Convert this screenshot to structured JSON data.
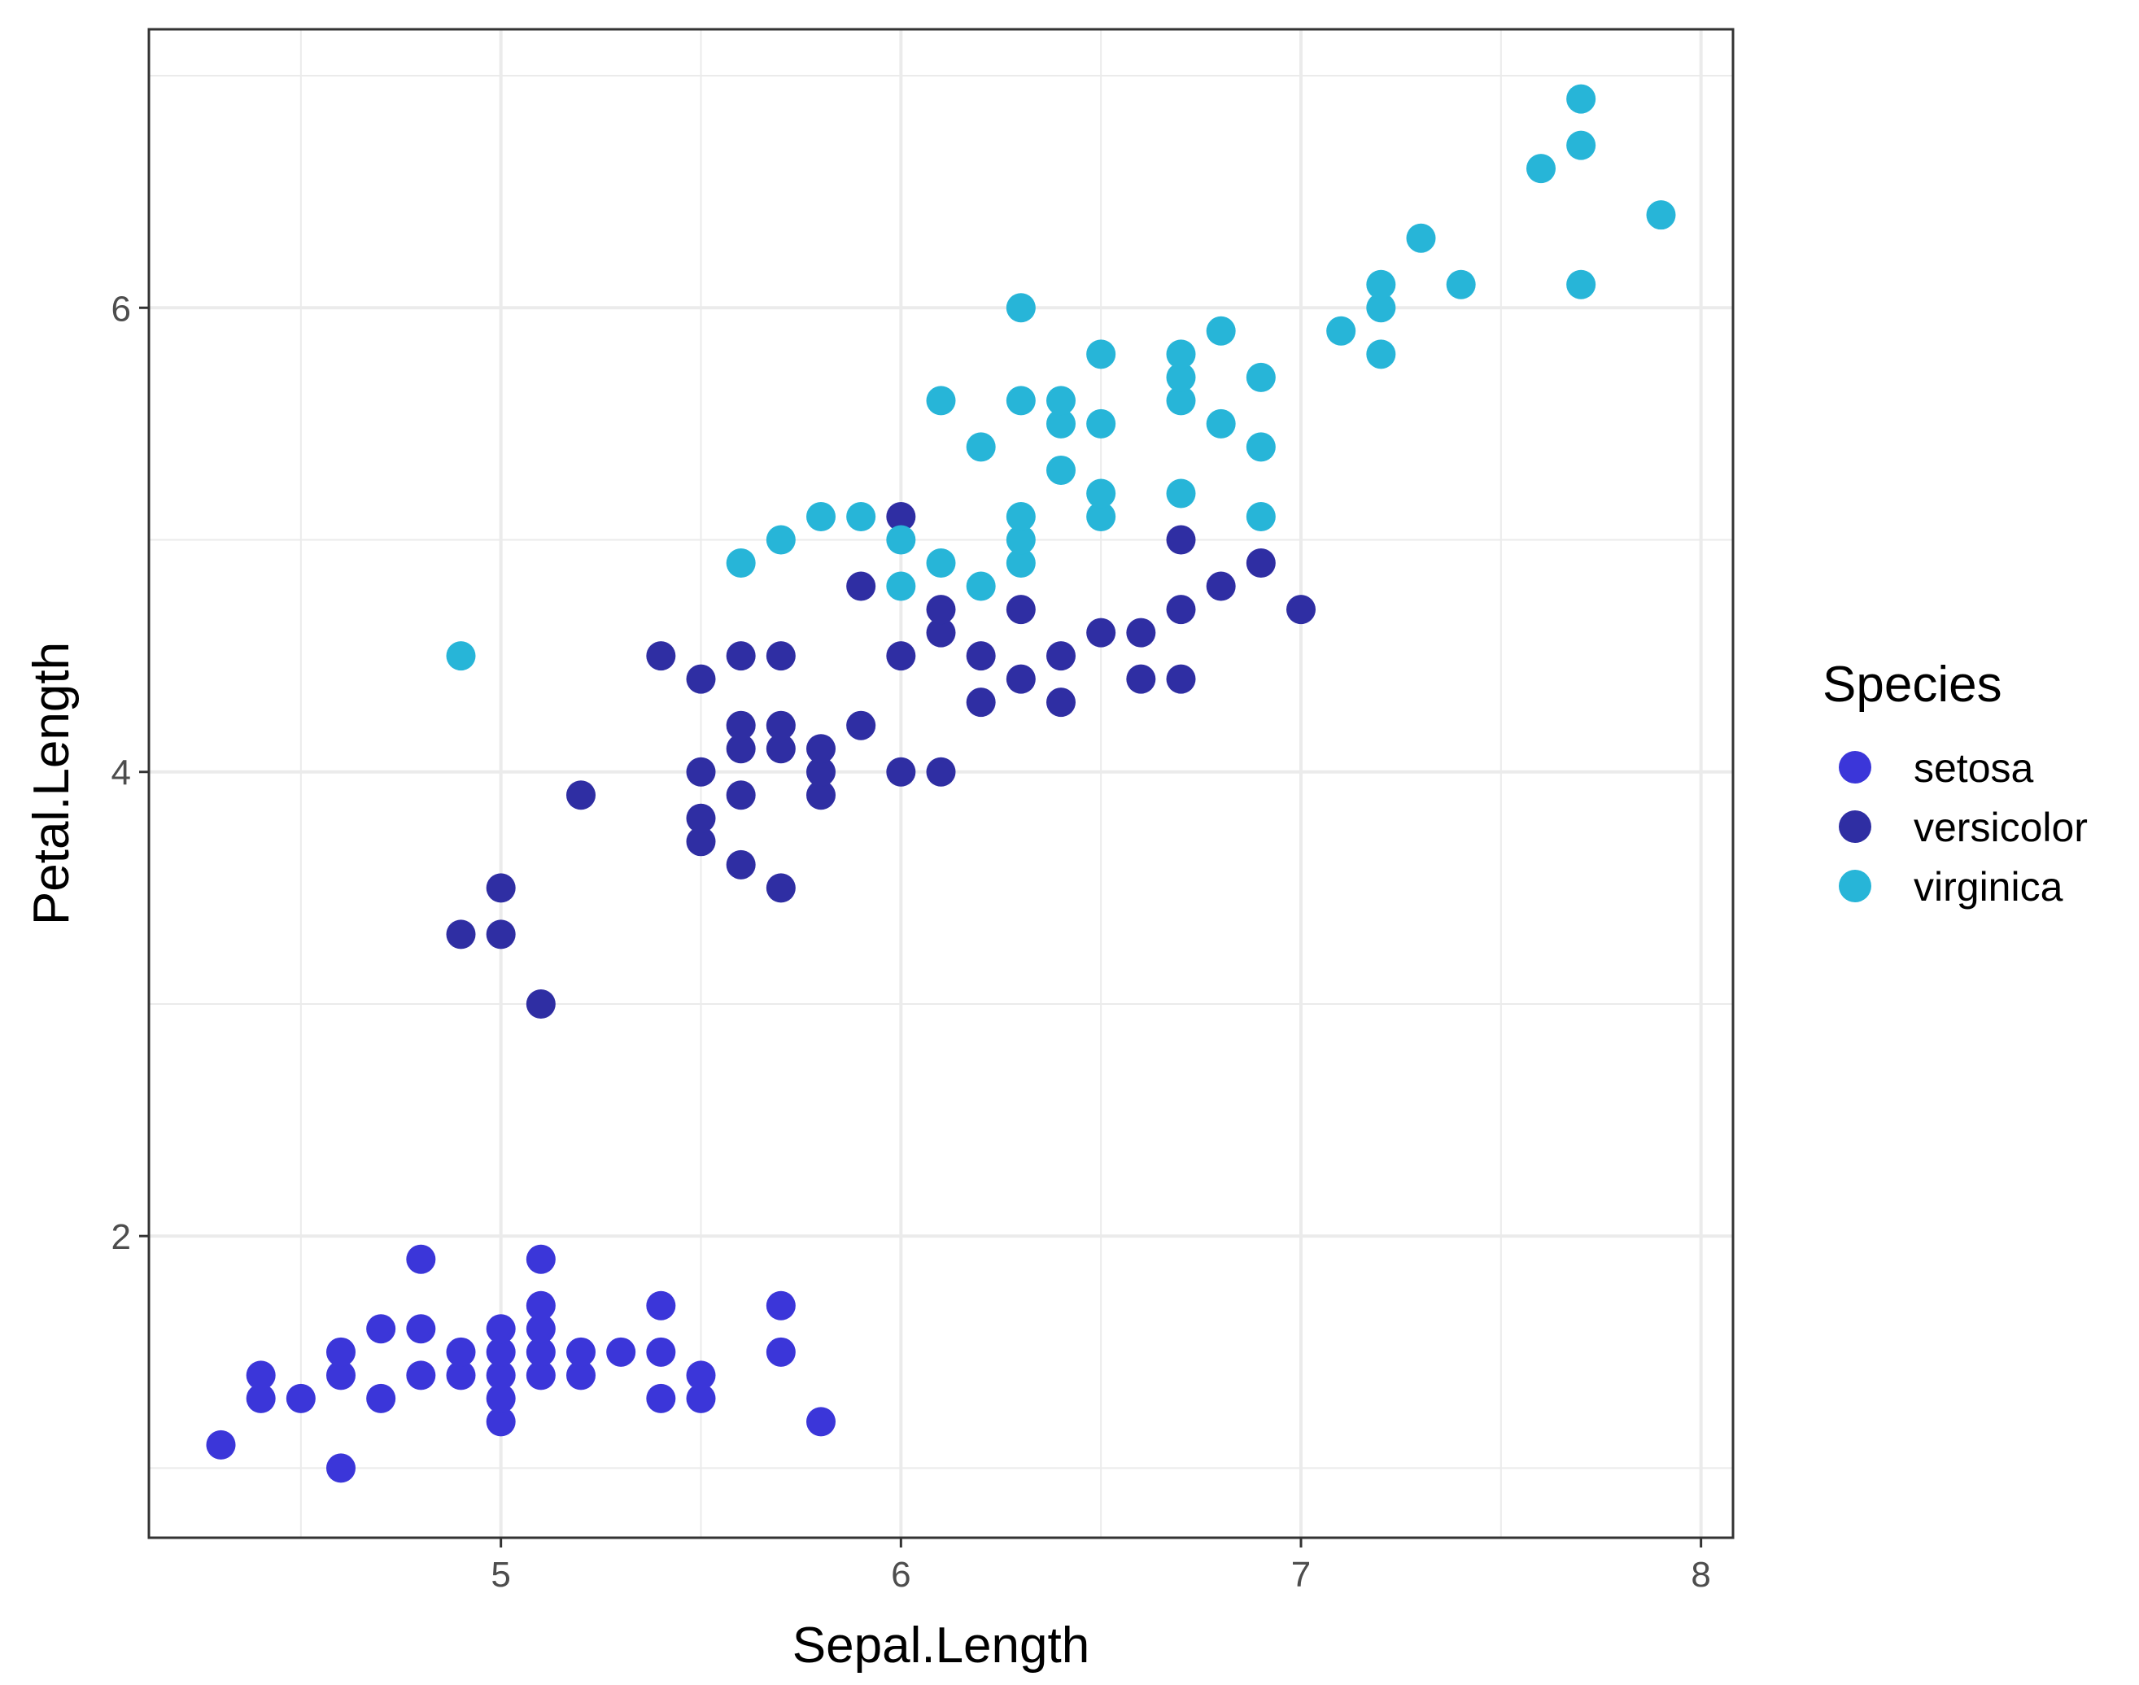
{
  "chart_data": {
    "type": "scatter",
    "xlabel": "Sepal.Length",
    "ylabel": "Petal.Length",
    "xlim": [
      4.12,
      8.08
    ],
    "ylim": [
      0.7,
      7.2
    ],
    "x_ticks": [
      5,
      6,
      7,
      8
    ],
    "y_ticks": [
      2,
      4,
      6
    ],
    "x_tick_labels": [
      "5",
      "6",
      "7",
      "8"
    ],
    "y_tick_labels": [
      "2",
      "4",
      "6"
    ],
    "grid": true,
    "legend": {
      "title": "Species",
      "placement": "right"
    },
    "series": [
      {
        "name": "setosa",
        "color": "#3b36d9",
        "points": [
          [
            4.3,
            1.1
          ],
          [
            4.4,
            1.3
          ],
          [
            4.4,
            1.4
          ],
          [
            4.5,
            1.3
          ],
          [
            4.6,
            1.0
          ],
          [
            4.6,
            1.4
          ],
          [
            4.6,
            1.5
          ],
          [
            4.7,
            1.3
          ],
          [
            4.7,
            1.6
          ],
          [
            4.8,
            1.4
          ],
          [
            4.8,
            1.6
          ],
          [
            4.8,
            1.9
          ],
          [
            4.9,
            1.4
          ],
          [
            4.9,
            1.5
          ],
          [
            5.0,
            1.2
          ],
          [
            5.0,
            1.3
          ],
          [
            5.0,
            1.4
          ],
          [
            5.0,
            1.5
          ],
          [
            5.0,
            1.6
          ],
          [
            5.1,
            1.4
          ],
          [
            5.1,
            1.5
          ],
          [
            5.1,
            1.6
          ],
          [
            5.1,
            1.7
          ],
          [
            5.1,
            1.9
          ],
          [
            5.2,
            1.4
          ],
          [
            5.2,
            1.5
          ],
          [
            5.3,
            1.5
          ],
          [
            5.4,
            1.3
          ],
          [
            5.4,
            1.5
          ],
          [
            5.4,
            1.7
          ],
          [
            5.5,
            1.3
          ],
          [
            5.5,
            1.4
          ],
          [
            5.7,
            1.5
          ],
          [
            5.7,
            1.7
          ],
          [
            5.8,
            1.2
          ]
        ]
      },
      {
        "name": "versicolor",
        "color": "#2f2ea3",
        "points": [
          [
            4.9,
            3.3
          ],
          [
            5.0,
            3.3
          ],
          [
            5.0,
            3.5
          ],
          [
            5.1,
            3.0
          ],
          [
            5.2,
            3.9
          ],
          [
            5.4,
            4.5
          ],
          [
            5.5,
            3.7
          ],
          [
            5.5,
            3.8
          ],
          [
            5.5,
            4.0
          ],
          [
            5.5,
            4.4
          ],
          [
            5.6,
            3.6
          ],
          [
            5.6,
            3.9
          ],
          [
            5.6,
            4.1
          ],
          [
            5.6,
            4.2
          ],
          [
            5.6,
            4.5
          ],
          [
            5.7,
            3.5
          ],
          [
            5.7,
            4.1
          ],
          [
            5.7,
            4.2
          ],
          [
            5.7,
            4.5
          ],
          [
            5.8,
            3.9
          ],
          [
            5.8,
            4.0
          ],
          [
            5.8,
            4.1
          ],
          [
            5.9,
            4.2
          ],
          [
            5.9,
            4.8
          ],
          [
            6.0,
            4.0
          ],
          [
            6.0,
            4.5
          ],
          [
            6.0,
            5.1
          ],
          [
            6.1,
            4.0
          ],
          [
            6.1,
            4.6
          ],
          [
            6.1,
            4.7
          ],
          [
            6.2,
            4.3
          ],
          [
            6.2,
            4.5
          ],
          [
            6.3,
            4.4
          ],
          [
            6.3,
            4.7
          ],
          [
            6.4,
            4.3
          ],
          [
            6.4,
            4.5
          ],
          [
            6.5,
            4.6
          ],
          [
            6.6,
            4.4
          ],
          [
            6.6,
            4.6
          ],
          [
            6.7,
            4.4
          ],
          [
            6.7,
            4.7
          ],
          [
            6.7,
            5.0
          ],
          [
            6.8,
            4.8
          ],
          [
            6.9,
            4.9
          ],
          [
            7.0,
            4.7
          ]
        ]
      },
      {
        "name": "virginica",
        "color": "#27b5d8",
        "points": [
          [
            4.9,
            4.5
          ],
          [
            5.6,
            4.9
          ],
          [
            5.7,
            5.0
          ],
          [
            5.8,
            5.1
          ],
          [
            5.9,
            5.1
          ],
          [
            6.0,
            4.8
          ],
          [
            6.0,
            5.0
          ],
          [
            6.1,
            4.9
          ],
          [
            6.1,
            5.6
          ],
          [
            6.2,
            4.8
          ],
          [
            6.2,
            5.4
          ],
          [
            6.3,
            4.9
          ],
          [
            6.3,
            5.0
          ],
          [
            6.3,
            5.1
          ],
          [
            6.3,
            5.6
          ],
          [
            6.3,
            6.0
          ],
          [
            6.4,
            5.3
          ],
          [
            6.4,
            5.5
          ],
          [
            6.4,
            5.6
          ],
          [
            6.5,
            5.1
          ],
          [
            6.5,
            5.2
          ],
          [
            6.5,
            5.5
          ],
          [
            6.5,
            5.8
          ],
          [
            6.7,
            5.2
          ],
          [
            6.7,
            5.6
          ],
          [
            6.7,
            5.7
          ],
          [
            6.7,
            5.8
          ],
          [
            6.8,
            5.5
          ],
          [
            6.8,
            5.9
          ],
          [
            6.9,
            5.1
          ],
          [
            6.9,
            5.4
          ],
          [
            6.9,
            5.7
          ],
          [
            7.1,
            5.9
          ],
          [
            7.2,
            5.8
          ],
          [
            7.2,
            6.0
          ],
          [
            7.2,
            6.1
          ],
          [
            7.3,
            6.3
          ],
          [
            7.4,
            6.1
          ],
          [
            7.6,
            6.6
          ],
          [
            7.7,
            6.1
          ],
          [
            7.7,
            6.7
          ],
          [
            7.7,
            6.9
          ],
          [
            7.9,
            6.4
          ]
        ]
      }
    ]
  }
}
